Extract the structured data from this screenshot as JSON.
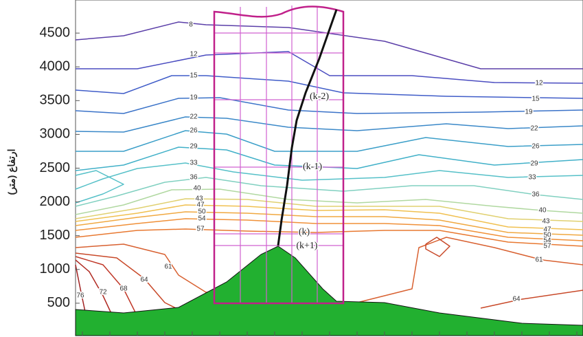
{
  "chart_data": {
    "type": "contour",
    "y_label": "ارتفاع (متر)",
    "ylim": [
      20,
      4990
    ],
    "yticks": [
      500,
      1000,
      1500,
      2000,
      2500,
      3000,
      3500,
      4000,
      4500
    ],
    "contours": [
      {
        "level": 8,
        "color": "#5a3ea8"
      },
      {
        "level": 12,
        "color": "#4a4cc0"
      },
      {
        "level": 15,
        "color": "#3f5cc8"
      },
      {
        "level": 19,
        "color": "#3a72c8"
      },
      {
        "level": 22,
        "color": "#3a88c8"
      },
      {
        "level": 26,
        "color": "#3a9ec8"
      },
      {
        "level": 29,
        "color": "#40b0c8"
      },
      {
        "level": 33,
        "color": "#55c0c8"
      },
      {
        "level": 36,
        "color": "#80d0c0"
      },
      {
        "level": 40,
        "color": "#b0d8a0"
      },
      {
        "level": 43,
        "color": "#e0d070"
      },
      {
        "level": 47,
        "color": "#f0c050"
      },
      {
        "level": 50,
        "color": "#f0a840"
      },
      {
        "level": 54,
        "color": "#f09038"
      },
      {
        "level": 57,
        "color": "#e87830"
      },
      {
        "level": 61,
        "color": "#d86030"
      },
      {
        "level": 64,
        "color": "#c84828"
      },
      {
        "level": 68,
        "color": "#c03828"
      },
      {
        "level": 72,
        "color": "#b02a22"
      },
      {
        "level": 76,
        "color": "#a02020"
      }
    ],
    "layers": [
      "(k-2)",
      "(k-1)",
      "(k)",
      "(k+1)"
    ],
    "terrain_color": "#22b030",
    "box_color": "#c0208a"
  }
}
